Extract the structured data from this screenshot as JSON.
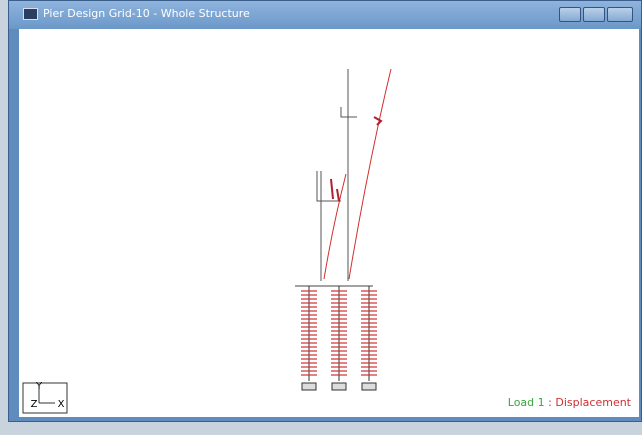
{
  "window": {
    "title": "Pier Design Grid-10 - Whole Structure"
  },
  "axes": {
    "y": "Y",
    "z": "Z",
    "x": "X"
  },
  "legend": {
    "load": "Load 1",
    "separator": ":",
    "result": "Displacement"
  }
}
